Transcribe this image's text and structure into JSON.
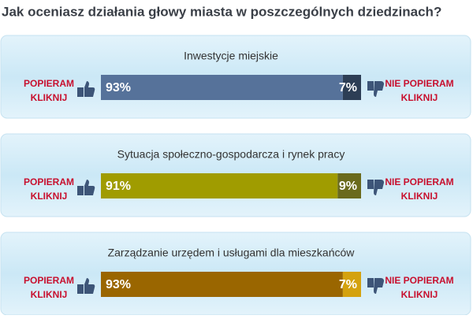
{
  "title": "Jak oceniasz działania głowy miasta w poszczególnych dziedzinach?",
  "support_label": "POPIERAM",
  "click_label": "KLIKNIJ",
  "oppose_label": "NIE POPIERAM",
  "polls": [
    {
      "topic": "Inwestycje miejskie",
      "values": [
        93,
        7
      ],
      "value_labels": [
        "93%",
        "7%"
      ],
      "colors": [
        "#56729a",
        "#2d3e55"
      ]
    },
    {
      "topic": "Sytuacja społeczno-gospodarcza i rynek pracy",
      "values": [
        91,
        9
      ],
      "value_labels": [
        "91%",
        "9%"
      ],
      "colors": [
        "#a09c00",
        "#6a6a1c"
      ]
    },
    {
      "topic": "Zarządzanie urzędem i usługami dla mieszkańców",
      "values": [
        93,
        7
      ],
      "value_labels": [
        "93%",
        "7%"
      ],
      "colors": [
        "#9a6600",
        "#d4a20f"
      ]
    }
  ]
}
